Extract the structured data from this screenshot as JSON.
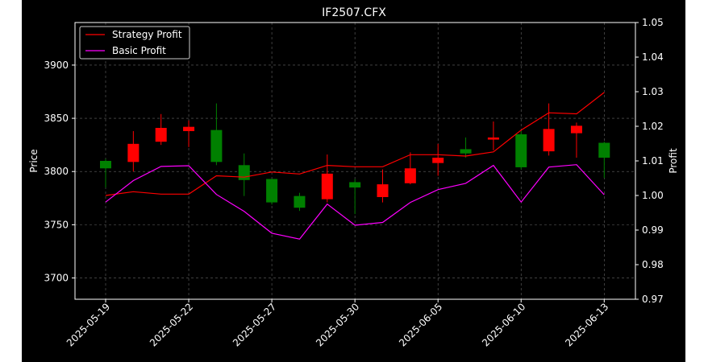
{
  "chart_data": {
    "type": "candlestick",
    "title": "IF2507.CFX",
    "ylabel_left": "Price",
    "ylabel_right": "Profit",
    "grid": true,
    "legend_position": "upper-left",
    "dates": [
      "2025-05-19",
      "2025-05-20",
      "2025-05-21",
      "2025-05-22",
      "2025-05-23",
      "2025-05-26",
      "2025-05-27",
      "2025-05-28",
      "2025-05-29",
      "2025-05-30",
      "2025-06-03",
      "2025-06-04",
      "2025-06-05",
      "2025-06-06",
      "2025-06-09",
      "2025-06-10",
      "2025-06-11",
      "2025-06-12",
      "2025-06-13"
    ],
    "x_ticks": [
      "2025-05-19",
      "2025-05-22",
      "2025-05-27",
      "2025-05-30",
      "2025-06-05",
      "2025-06-10",
      "2025-06-13"
    ],
    "price_ylim": [
      3680,
      3940
    ],
    "price_ticks": [
      3700,
      3750,
      3800,
      3850,
      3900
    ],
    "profit_ylim": [
      0.97,
      1.05
    ],
    "profit_ticks": [
      "0.97",
      "0.98",
      "0.99",
      "1.00",
      "1.01",
      "1.02",
      "1.03",
      "1.04",
      "1.05"
    ],
    "ohlc": [
      {
        "open": 3810,
        "high": 3812,
        "low": 3785,
        "close": 3803
      },
      {
        "open": 3809,
        "high": 3838,
        "low": 3800,
        "close": 3826
      },
      {
        "open": 3828,
        "high": 3854,
        "low": 3825,
        "close": 3841
      },
      {
        "open": 3838,
        "high": 3848,
        "low": 3823,
        "close": 3842
      },
      {
        "open": 3839,
        "high": 3864,
        "low": 3806,
        "close": 3809
      },
      {
        "open": 3806,
        "high": 3817,
        "low": 3777,
        "close": 3792
      },
      {
        "open": 3793,
        "high": 3793,
        "low": 3769,
        "close": 3771
      },
      {
        "open": 3777,
        "high": 3780,
        "low": 3763,
        "close": 3766
      },
      {
        "open": 3774,
        "high": 3816,
        "low": 3771,
        "close": 3798
      },
      {
        "open": 3790,
        "high": 3793,
        "low": 3760,
        "close": 3785
      },
      {
        "open": 3776,
        "high": 3802,
        "low": 3771,
        "close": 3788
      },
      {
        "open": 3789,
        "high": 3818,
        "low": 3788,
        "close": 3803
      },
      {
        "open": 3808,
        "high": 3826,
        "low": 3796,
        "close": 3813
      },
      {
        "open": 3821,
        "high": 3832,
        "low": 3813,
        "close": 3817
      },
      {
        "open": 3830,
        "high": 3847,
        "low": 3820,
        "close": 3832
      },
      {
        "open": 3835,
        "high": 3838,
        "low": 3802,
        "close": 3804
      },
      {
        "open": 3819,
        "high": 3864,
        "low": 3815,
        "close": 3840
      },
      {
        "open": 3836,
        "high": 3846,
        "low": 3813,
        "close": 3843
      },
      {
        "open": 3827,
        "high": 3828,
        "low": 3794,
        "close": 3813
      }
    ],
    "series": [
      {
        "name": "Strategy Profit",
        "color": "#ff0000",
        "values": [
          1.0,
          1.0011,
          1.0004,
          1.0004,
          1.0057,
          1.0053,
          1.0068,
          1.0062,
          1.0087,
          1.0083,
          1.0083,
          1.0118,
          1.0118,
          1.0114,
          1.0126,
          1.0189,
          1.0239,
          1.0236,
          1.0298
        ]
      },
      {
        "name": "Basic Profit",
        "color": "#ff00ff",
        "values": [
          0.9981,
          1.0043,
          1.0084,
          1.0086,
          1.0003,
          0.9954,
          0.9891,
          0.9874,
          0.9975,
          0.9914,
          0.9922,
          0.998,
          1.0017,
          1.0035,
          1.0087,
          0.9981,
          1.0082,
          1.0089,
          1.0002
        ]
      }
    ]
  }
}
